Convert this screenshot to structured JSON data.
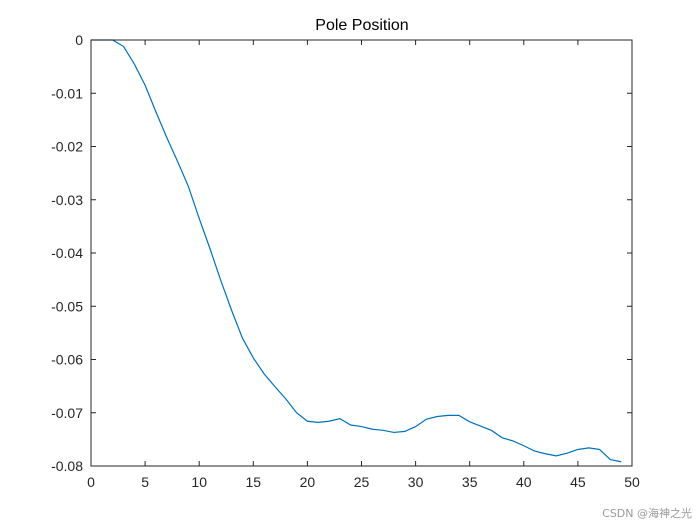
{
  "chart_data": {
    "type": "line",
    "title": "Pole Position",
    "xlabel": "",
    "ylabel": "",
    "xlim": [
      0,
      50
    ],
    "ylim": [
      -0.08,
      0
    ],
    "xticks": [
      0,
      5,
      10,
      15,
      20,
      25,
      30,
      35,
      40,
      45,
      50
    ],
    "yticks": [
      0,
      -0.01,
      -0.02,
      -0.03,
      -0.04,
      -0.05,
      -0.06,
      -0.07,
      -0.08
    ],
    "xtick_labels": [
      "0",
      "5",
      "10",
      "15",
      "20",
      "25",
      "30",
      "35",
      "40",
      "45",
      "50"
    ],
    "ytick_labels": [
      "0",
      "-0.01",
      "-0.02",
      "-0.03",
      "-0.04",
      "-0.05",
      "-0.06",
      "-0.07",
      "-0.08"
    ],
    "grid": false,
    "series": [
      {
        "color": "#0072BD",
        "x": [
          0,
          1,
          2,
          3,
          4,
          5,
          6,
          7,
          8,
          9,
          10,
          11,
          12,
          13,
          14,
          15,
          16,
          17,
          18,
          19,
          20,
          21,
          22,
          23,
          24,
          25,
          26,
          27,
          28,
          29,
          30,
          31,
          32,
          33,
          34,
          35,
          36,
          37,
          38,
          39,
          40,
          41,
          42,
          43,
          44,
          45,
          46,
          47,
          48,
          49
        ],
        "y": [
          0,
          0,
          0,
          -0.0012,
          -0.0045,
          -0.0085,
          -0.0135,
          -0.0183,
          -0.0228,
          -0.0275,
          -0.0335,
          -0.0392,
          -0.0452,
          -0.0508,
          -0.056,
          -0.0597,
          -0.0627,
          -0.0651,
          -0.0674,
          -0.07,
          -0.0716,
          -0.0718,
          -0.0716,
          -0.0711,
          -0.0723,
          -0.0726,
          -0.0731,
          -0.0733,
          -0.0737,
          -0.0735,
          -0.0726,
          -0.0712,
          -0.0707,
          -0.0705,
          -0.0705,
          -0.0717,
          -0.0725,
          -0.0733,
          -0.0747,
          -0.0753,
          -0.0762,
          -0.0772,
          -0.0777,
          -0.0781,
          -0.0776,
          -0.0769,
          -0.0766,
          -0.0769,
          -0.0788,
          -0.0792
        ]
      }
    ]
  },
  "watermark": "CSDN @海神之光",
  "colors": {
    "axis": "#262626",
    "line": "#0072BD",
    "background": "#ffffff"
  }
}
